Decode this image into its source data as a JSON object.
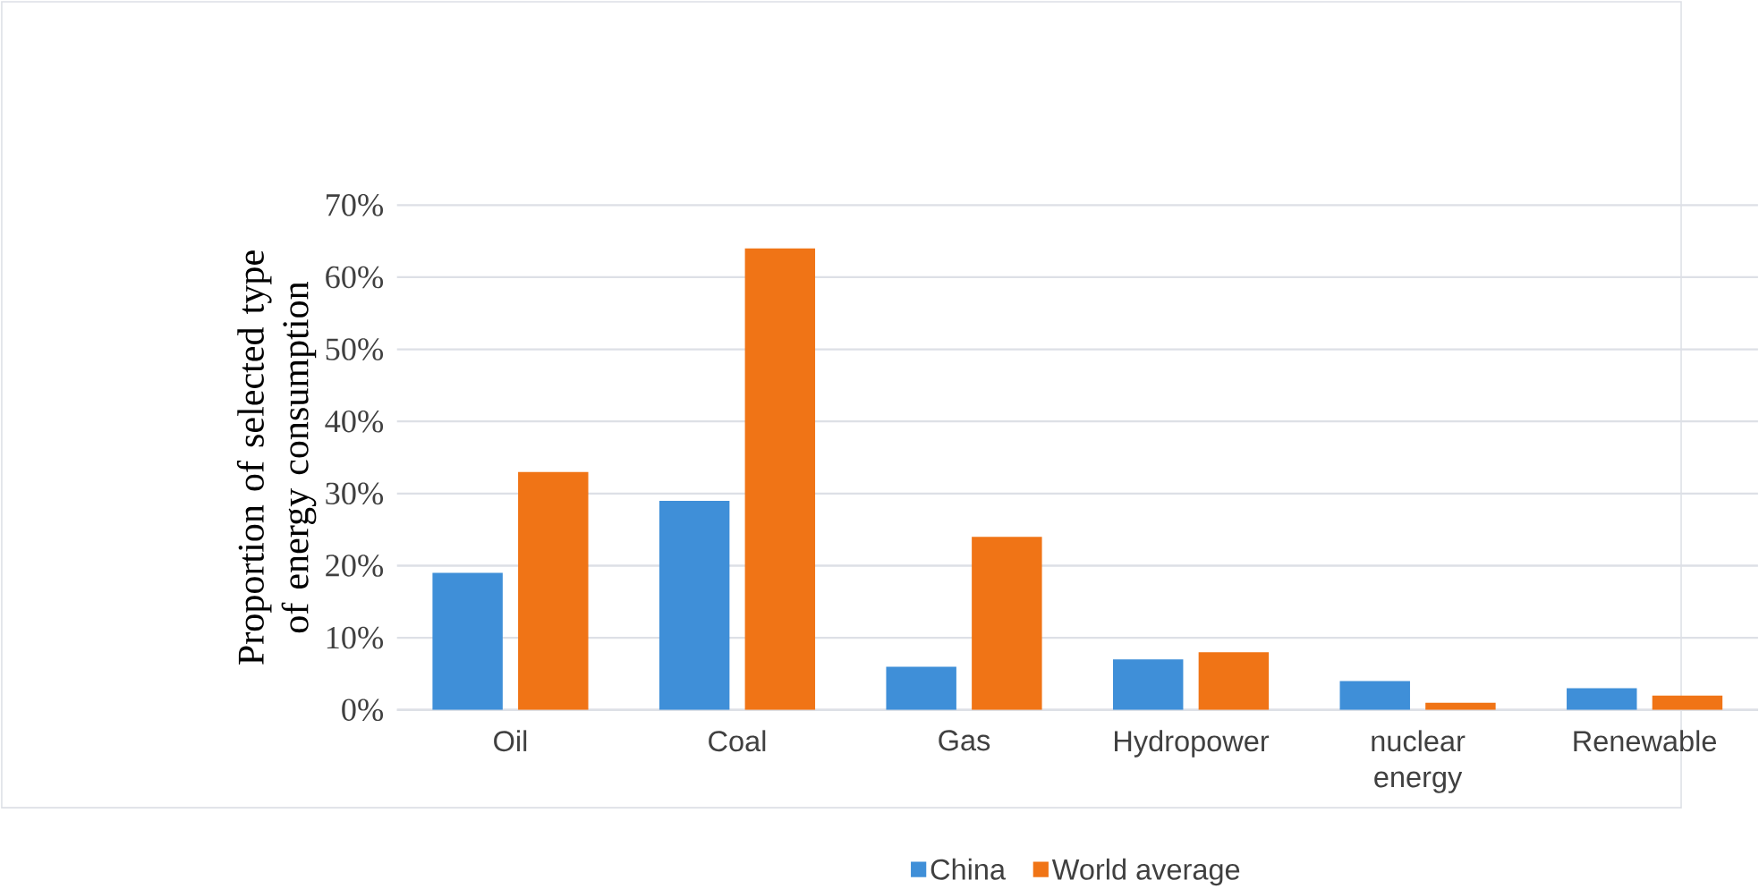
{
  "chart_data": {
    "type": "bar",
    "ylabel": "Proportion of selected type of energy consumption",
    "categories": [
      "Oil",
      "Coal",
      "Gas",
      "Hydropower",
      "nuclear energy",
      "Renewable"
    ],
    "series": [
      {
        "name": "China",
        "color": "#3f8fd8",
        "values": [
          19,
          29,
          6,
          7,
          4,
          3
        ]
      },
      {
        "name": "World average",
        "color": "#f07416",
        "values": [
          33,
          64,
          24,
          8,
          1,
          2
        ]
      }
    ],
    "ylim": [
      0,
      70
    ],
    "yticks": [
      {
        "value": 0,
        "label": "0%"
      },
      {
        "value": 10,
        "label": "10%"
      },
      {
        "value": 20,
        "label": "20%"
      },
      {
        "value": 30,
        "label": "30%"
      },
      {
        "value": 40,
        "label": "40%"
      },
      {
        "value": 50,
        "label": "50%"
      },
      {
        "value": 60,
        "label": "60%"
      },
      {
        "value": 70,
        "label": "70%"
      }
    ],
    "grid": "y",
    "legend": "bottom"
  }
}
